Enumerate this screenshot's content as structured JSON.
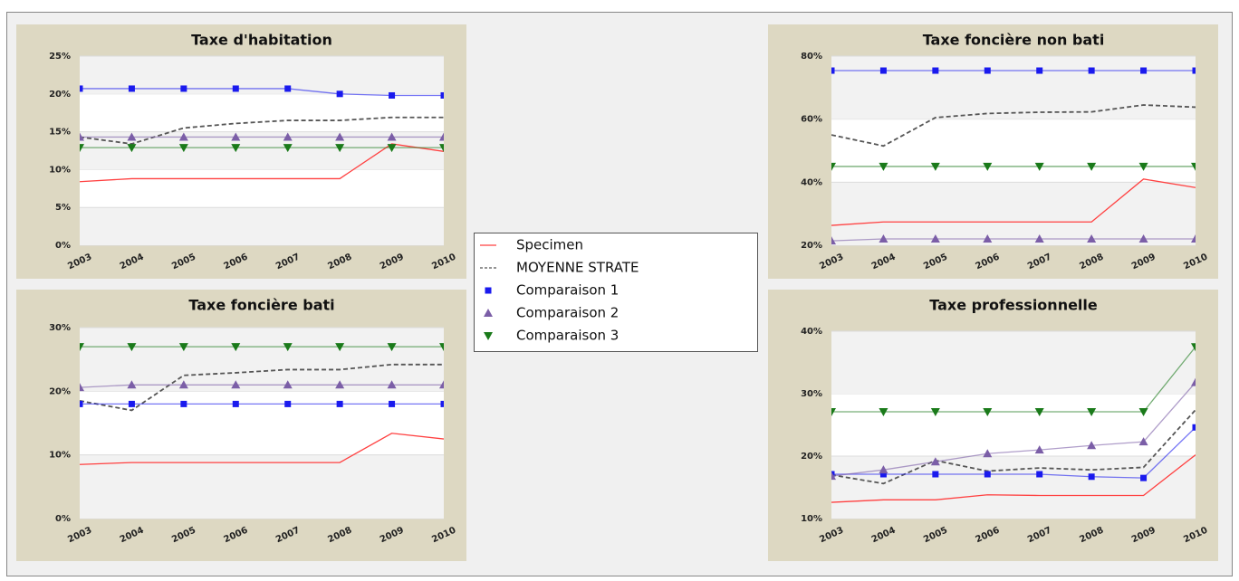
{
  "chart_data": [
    {
      "type": "line",
      "title": "Taxe d'habitation",
      "categories": [
        "2003",
        "2004",
        "2005",
        "2006",
        "2007",
        "2008",
        "2009",
        "2010"
      ],
      "ylim": [
        0,
        25
      ],
      "yticks": [
        {
          "value": 0,
          "label": "0%"
        },
        {
          "value": 5,
          "label": "5%"
        },
        {
          "value": 10,
          "label": "10%"
        },
        {
          "value": 15,
          "label": "15%"
        },
        {
          "value": 20,
          "label": "20%"
        },
        {
          "value": 25,
          "label": "25%"
        }
      ],
      "grid": true,
      "series": [
        {
          "name": "Specimen",
          "color": "#ff4040",
          "marker": "none",
          "dash": false,
          "values": [
            8.4,
            8.8,
            8.8,
            8.8,
            8.8,
            8.8,
            13.4,
            12.4
          ]
        },
        {
          "name": "MOYENNE STRATE",
          "color": "#555555",
          "marker": "none",
          "dash": true,
          "values": [
            14.3,
            13.4,
            15.5,
            16.1,
            16.5,
            16.5,
            16.9,
            16.9
          ]
        },
        {
          "name": "Comparaison 1",
          "color": "#1a1aee",
          "marker": "square",
          "dash": false,
          "values": [
            20.7,
            20.7,
            20.7,
            20.7,
            20.7,
            20.0,
            19.8,
            19.8
          ]
        },
        {
          "name": "Comparaison 2",
          "color": "#7b5ea7",
          "marker": "triangle-up",
          "dash": false,
          "values": [
            14.3,
            14.3,
            14.3,
            14.3,
            14.3,
            14.3,
            14.3,
            14.3
          ]
        },
        {
          "name": "Comparaison 3",
          "color": "#1a7a1a",
          "marker": "triangle-down",
          "dash": false,
          "values": [
            12.9,
            12.9,
            12.9,
            12.9,
            12.9,
            12.9,
            12.9,
            12.9
          ]
        }
      ]
    },
    {
      "type": "line",
      "title": "Taxe foncière non bati",
      "categories": [
        "2003",
        "2004",
        "2005",
        "2006",
        "2007",
        "2008",
        "2009",
        "2010"
      ],
      "ylim": [
        20,
        80
      ],
      "yticks": [
        {
          "value": 20,
          "label": "20%"
        },
        {
          "value": 40,
          "label": "40%"
        },
        {
          "value": 60,
          "label": "60%"
        },
        {
          "value": 80,
          "label": "80%"
        }
      ],
      "grid": true,
      "series": [
        {
          "name": "Specimen",
          "color": "#ff4040",
          "marker": "none",
          "dash": false,
          "values": [
            26.3,
            27.4,
            27.4,
            27.4,
            27.4,
            27.4,
            41,
            38.3
          ]
        },
        {
          "name": "MOYENNE STRATE",
          "color": "#555555",
          "marker": "none",
          "dash": true,
          "values": [
            55,
            51.5,
            60.5,
            61.8,
            62.2,
            62.3,
            64.5,
            63.8
          ]
        },
        {
          "name": "Comparaison 1",
          "color": "#1a1aee",
          "marker": "square",
          "dash": false,
          "values": [
            75.4,
            75.4,
            75.4,
            75.4,
            75.4,
            75.4,
            75.4,
            75.4
          ]
        },
        {
          "name": "Comparaison 2",
          "color": "#7b5ea7",
          "marker": "triangle-up",
          "dash": false,
          "values": [
            21.4,
            22,
            22,
            22,
            22,
            22,
            22,
            22
          ]
        },
        {
          "name": "Comparaison 3",
          "color": "#1a7a1a",
          "marker": "triangle-down",
          "dash": false,
          "values": [
            45,
            45,
            45,
            45,
            45,
            45,
            45,
            45
          ]
        }
      ]
    },
    {
      "type": "line",
      "title": "Taxe foncière bati",
      "categories": [
        "2003",
        "2004",
        "2005",
        "2006",
        "2007",
        "2008",
        "2009",
        "2010"
      ],
      "ylim": [
        0,
        30
      ],
      "yticks": [
        {
          "value": 0,
          "label": "0%"
        },
        {
          "value": 10,
          "label": "10%"
        },
        {
          "value": 20,
          "label": "20%"
        },
        {
          "value": 30,
          "label": "30%"
        }
      ],
      "grid": true,
      "series": [
        {
          "name": "Specimen",
          "color": "#ff4040",
          "marker": "none",
          "dash": false,
          "values": [
            8.5,
            8.8,
            8.8,
            8.8,
            8.8,
            8.8,
            13.4,
            12.5
          ]
        },
        {
          "name": "MOYENNE STRATE",
          "color": "#555555",
          "marker": "none",
          "dash": true,
          "values": [
            18.5,
            17,
            22.5,
            22.9,
            23.4,
            23.4,
            24.2,
            24.2
          ]
        },
        {
          "name": "Comparaison 1",
          "color": "#1a1aee",
          "marker": "square",
          "dash": false,
          "values": [
            18,
            18,
            18,
            18,
            18,
            18,
            18,
            18
          ]
        },
        {
          "name": "Comparaison 2",
          "color": "#7b5ea7",
          "marker": "triangle-up",
          "dash": false,
          "values": [
            20.6,
            21,
            21,
            21,
            21,
            21,
            21,
            21
          ]
        },
        {
          "name": "Comparaison 3",
          "color": "#1a7a1a",
          "marker": "triangle-down",
          "dash": false,
          "values": [
            27,
            27,
            27,
            27,
            27,
            27,
            27,
            27
          ]
        }
      ]
    },
    {
      "type": "line",
      "title": "Taxe professionnelle",
      "categories": [
        "2003",
        "2004",
        "2005",
        "2006",
        "2007",
        "2008",
        "2009",
        "2010"
      ],
      "ylim": [
        10,
        40
      ],
      "yticks": [
        {
          "value": 10,
          "label": "10%"
        },
        {
          "value": 20,
          "label": "20%"
        },
        {
          "value": 30,
          "label": "30%"
        },
        {
          "value": 40,
          "label": "40%"
        }
      ],
      "grid": true,
      "series": [
        {
          "name": "Specimen",
          "color": "#ff4040",
          "marker": "none",
          "dash": false,
          "values": [
            12.6,
            13,
            13,
            13.8,
            13.7,
            13.7,
            13.7,
            20.2
          ]
        },
        {
          "name": "MOYENNE STRATE",
          "color": "#555555",
          "marker": "none",
          "dash": true,
          "values": [
            17,
            15.6,
            19.3,
            17.6,
            18.1,
            17.8,
            18.2,
            27.4
          ]
        },
        {
          "name": "Comparaison 1",
          "color": "#1a1aee",
          "marker": "square",
          "dash": false,
          "values": [
            17.1,
            17.1,
            17.1,
            17.1,
            17.1,
            16.7,
            16.5,
            24.6
          ]
        },
        {
          "name": "Comparaison 2",
          "color": "#7b5ea7",
          "marker": "triangle-up",
          "dash": false,
          "values": [
            16.8,
            17.8,
            19.1,
            20.4,
            21,
            21.7,
            22.3,
            31.8
          ]
        },
        {
          "name": "Comparaison 3",
          "color": "#1a7a1a",
          "marker": "triangle-down",
          "dash": false,
          "values": [
            27.1,
            27.1,
            27.1,
            27.1,
            27.1,
            27.1,
            27.1,
            37.5
          ]
        }
      ]
    }
  ]
}
